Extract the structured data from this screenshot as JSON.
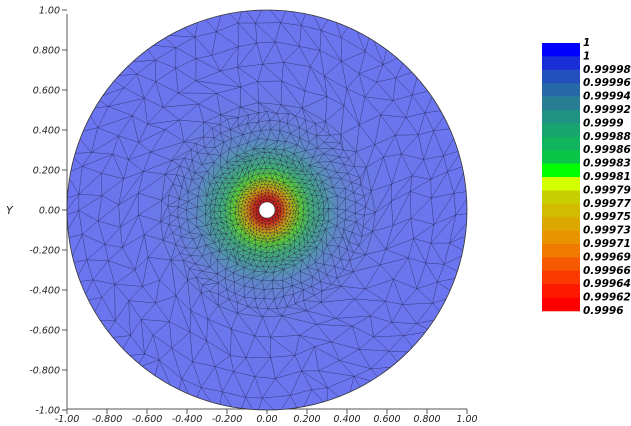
{
  "chart_data": {
    "type": "heatmap",
    "title": "",
    "xlabel": "",
    "ylabel": "Y",
    "xlim": [
      -1.0,
      1.0
    ],
    "ylim": [
      -1.0,
      1.0
    ],
    "xticks": [
      "-1.00",
      "-0.800",
      "-0.600",
      "-0.400",
      "-0.200",
      "0.00",
      "0.200",
      "0.400",
      "0.600",
      "0.800",
      "1.00"
    ],
    "yticks": [
      "1.00",
      "0.800",
      "0.600",
      "0.400",
      "0.200",
      "0.00",
      "-0.200",
      "-0.400",
      "-0.600",
      "-0.800",
      "-1.00"
    ],
    "domain": {
      "shape": "annulus",
      "outer_radius": 1.0,
      "inner_radius": 0.05,
      "mesh": "triangular"
    },
    "field_min": 0.9996,
    "field_max": 1.0,
    "field_description": "minimum at inner hole, rising radially to maximum",
    "legend_position": "right",
    "legend": {
      "labels": [
        "1",
        "1",
        "0.99998",
        "0.99996",
        "0.99994",
        "0.99992",
        "0.9999",
        "0.99988",
        "0.99986",
        "0.99983",
        "0.99981",
        "0.99979",
        "0.99977",
        "0.99975",
        "0.99973",
        "0.99971",
        "0.99969",
        "0.99966",
        "0.99964",
        "0.99962",
        "0.9996"
      ],
      "colors": [
        "#0000ff",
        "#1a2ed8",
        "#2450bd",
        "#2768a8",
        "#277e94",
        "#209283",
        "#18a36f",
        "#11b45c",
        "#0ac648",
        "#00ff00",
        "#d4ff00",
        "#c7cf00",
        "#d3bb00",
        "#dca800",
        "#e89400",
        "#f07a00",
        "#f55a00",
        "#fa3800",
        "#ff1800",
        "#ff0000"
      ]
    }
  }
}
